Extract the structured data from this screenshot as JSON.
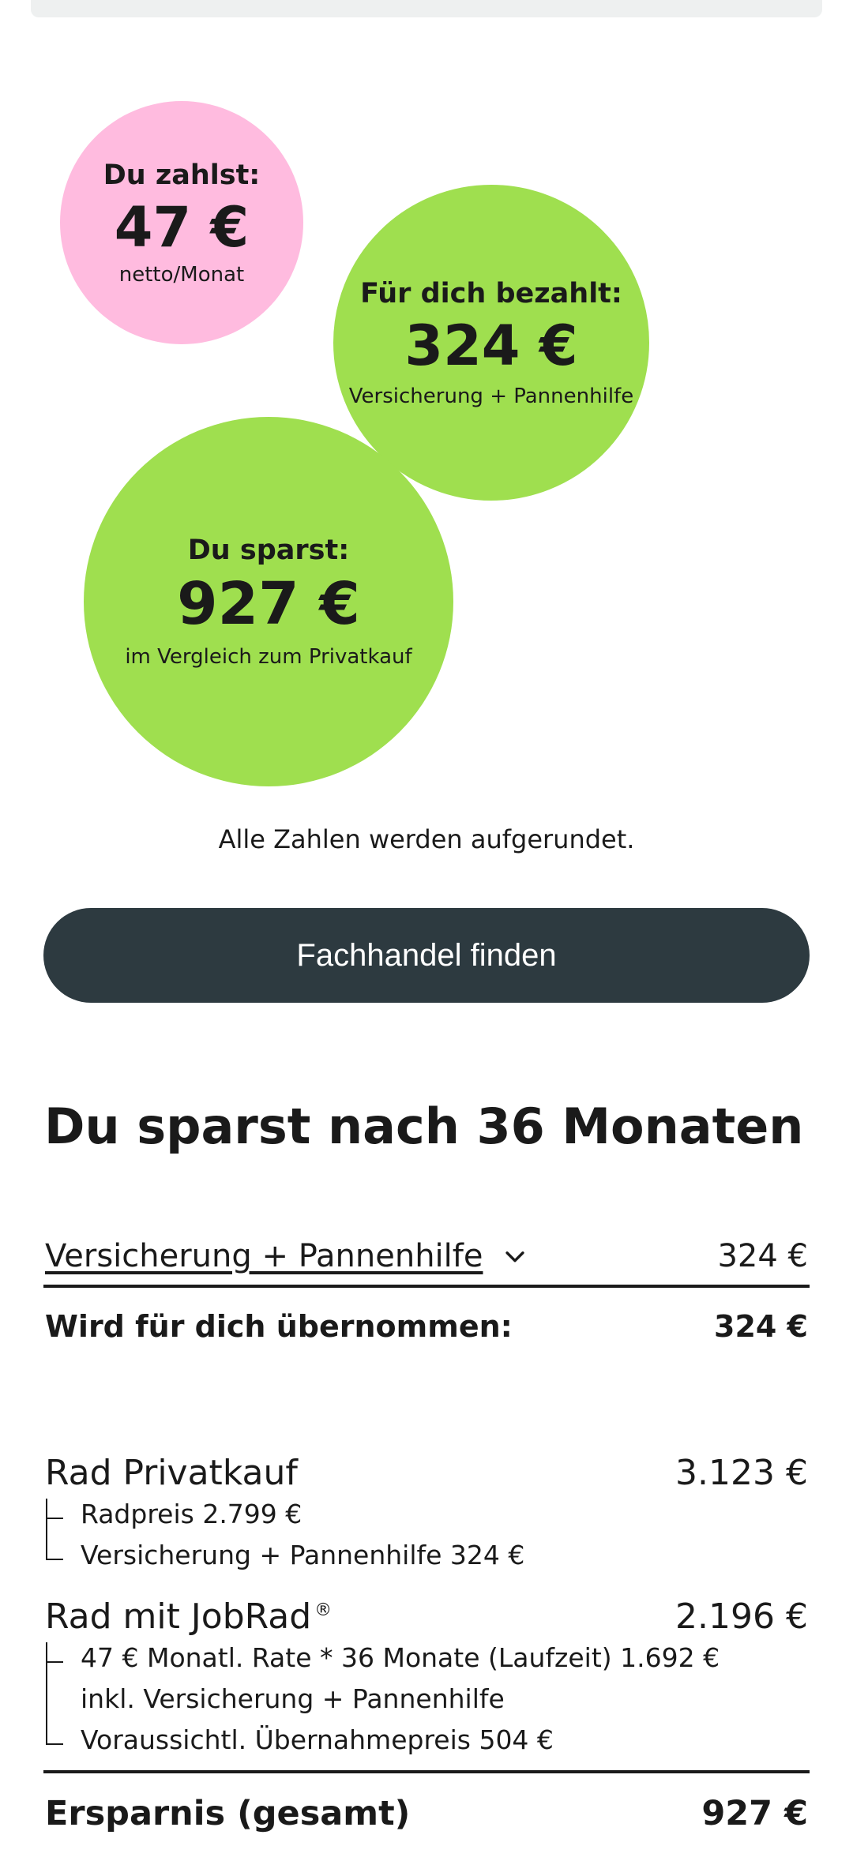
{
  "bubbles": {
    "pay": {
      "label": "Du zahlst:",
      "value": "47 €",
      "sub": "netto/Monat",
      "color": "#ffbbdf"
    },
    "paid": {
      "label": "Für dich bezahlt:",
      "value": "324 €",
      "sub": "Versicherung + Pannenhilfe",
      "color": "#9fdf4f"
    },
    "save": {
      "label": "Du sparst:",
      "value": "927 €",
      "sub": "im Vergleich zum Privatkauf",
      "color": "#9fdf4f"
    }
  },
  "note": "Alle Zahlen werden aufgerundet.",
  "cta": {
    "label": "Fachhandel finden",
    "color": "#2d3a40"
  },
  "savings": {
    "title": "Du sparst nach 36 Monaten",
    "insurance": {
      "label": "Versicherung + Pannenhilfe",
      "value": "324 €",
      "icon": "chevron-down-icon"
    },
    "covered": {
      "label": "Wird für dich übernommen:",
      "value": "324 €"
    },
    "private": {
      "label": "Rad Privatkauf",
      "value": "3.123 €",
      "items": [
        "Radpreis 2.799 €",
        "Versicherung + Pannenhilfe 324 €"
      ]
    },
    "jobrad": {
      "label": "Rad mit JobRad",
      "mark": "®",
      "value": "2.196 €",
      "items": [
        "47 € Monatl. Rate * 36 Monate (Laufzeit) 1.692 €",
        "inkl. Versicherung + Pannenhilfe",
        "Voraussichtl. Übernahmepreis 504 €"
      ]
    },
    "total": {
      "label": "Ersparnis (gesamt)",
      "value": "927 €"
    }
  }
}
